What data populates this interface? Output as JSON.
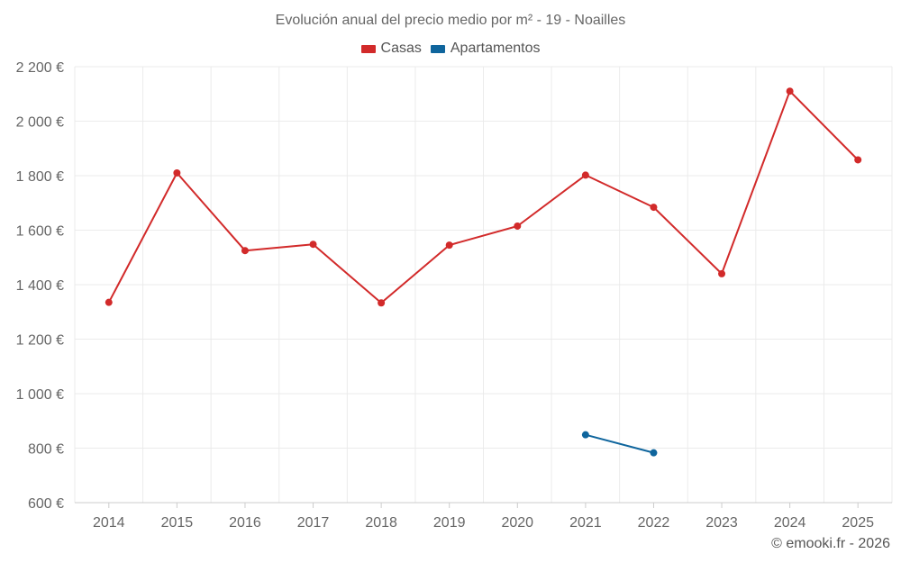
{
  "chart_data": {
    "type": "line",
    "title": "Evolución anual del precio medio por m² - 19 - Noailles",
    "categories": [
      "2014",
      "2015",
      "2016",
      "2017",
      "2018",
      "2019",
      "2020",
      "2021",
      "2022",
      "2023",
      "2024",
      "2025"
    ],
    "series": [
      {
        "name": "Casas",
        "color": "#d22a2a",
        "values": [
          1335,
          1810,
          1525,
          1548,
          1333,
          1545,
          1615,
          1802,
          1684,
          1440,
          2110,
          1858
        ]
      },
      {
        "name": "Apartamentos",
        "color": "#0f659d",
        "values": [
          null,
          null,
          null,
          null,
          null,
          null,
          null,
          849,
          783,
          null,
          null,
          null
        ]
      }
    ],
    "ylim": [
      600,
      2200
    ],
    "yticks": [
      600,
      800,
      1000,
      1200,
      1400,
      1600,
      1800,
      2000,
      2200
    ],
    "ytick_labels": [
      "600 €",
      "800 €",
      "1 000 €",
      "1 200 €",
      "1 400 €",
      "1 600 €",
      "1 800 €",
      "2 000 €",
      "2 200 €"
    ],
    "xlabel": "",
    "ylabel": "",
    "grid": true,
    "legend_position": "top-center"
  },
  "credit": "© emooki.fr - 2026"
}
